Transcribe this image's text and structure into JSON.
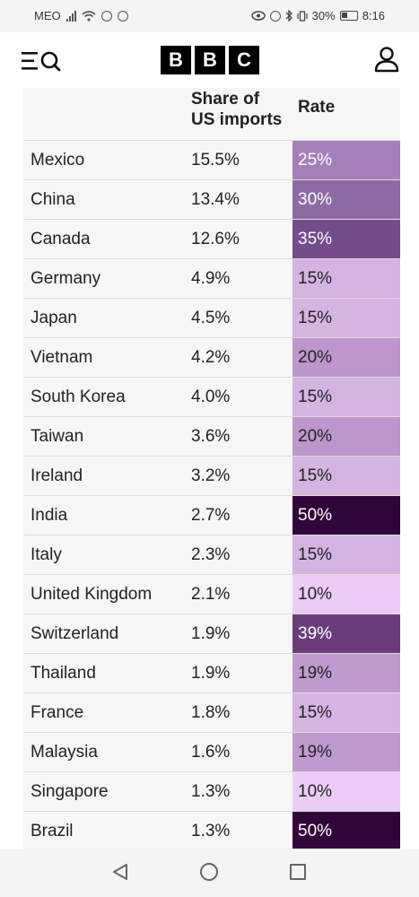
{
  "status_bar": {
    "carrier": "MEO",
    "battery": "30%",
    "time": "8:16"
  },
  "header": {
    "logo_letters": [
      "B",
      "B",
      "C"
    ]
  },
  "table": {
    "headers": {
      "country": "",
      "share_line1": "Share of",
      "share_line2": "US imports",
      "rate": "Rate"
    },
    "rows": [
      {
        "country": "Mexico",
        "share": "15.5%",
        "rate": "25%",
        "color": "#a47fb8",
        "text": "#ffffff"
      },
      {
        "country": "China",
        "share": "13.4%",
        "rate": "30%",
        "color": "#8e6aa5",
        "text": "#ffffff"
      },
      {
        "country": "Canada",
        "share": "12.6%",
        "rate": "35%",
        "color": "#744c8c",
        "text": "#ffffff"
      },
      {
        "country": "Germany",
        "share": "4.9%",
        "rate": "15%",
        "color": "#d5b4e1",
        "text": "#202224"
      },
      {
        "country": "Japan",
        "share": "4.5%",
        "rate": "15%",
        "color": "#d5b4e1",
        "text": "#202224"
      },
      {
        "country": "Vietnam",
        "share": "4.2%",
        "rate": "20%",
        "color": "#bd96cc",
        "text": "#202224"
      },
      {
        "country": "South Korea",
        "share": "4.0%",
        "rate": "15%",
        "color": "#d5b4e1",
        "text": "#202224"
      },
      {
        "country": "Taiwan",
        "share": "3.6%",
        "rate": "20%",
        "color": "#bd96cc",
        "text": "#202224"
      },
      {
        "country": "Ireland",
        "share": "3.2%",
        "rate": "15%",
        "color": "#d5b4e1",
        "text": "#202224"
      },
      {
        "country": "India",
        "share": "2.7%",
        "rate": "50%",
        "color": "#32053a",
        "text": "#ffffff"
      },
      {
        "country": "Italy",
        "share": "2.3%",
        "rate": "15%",
        "color": "#d5b4e1",
        "text": "#202224"
      },
      {
        "country": "United Kingdom",
        "share": "2.1%",
        "rate": "10%",
        "color": "#ecccf6",
        "text": "#202224"
      },
      {
        "country": "Switzerland",
        "share": "1.9%",
        "rate": "39%",
        "color": "#6a3d7a",
        "text": "#ffffff"
      },
      {
        "country": "Thailand",
        "share": "1.9%",
        "rate": "19%",
        "color": "#c09ace",
        "text": "#202224"
      },
      {
        "country": "France",
        "share": "1.8%",
        "rate": "15%",
        "color": "#d5b4e1",
        "text": "#202224"
      },
      {
        "country": "Malaysia",
        "share": "1.6%",
        "rate": "19%",
        "color": "#c09ace",
        "text": "#202224"
      },
      {
        "country": "Singapore",
        "share": "1.3%",
        "rate": "10%",
        "color": "#ecccf6",
        "text": "#202224"
      },
      {
        "country": "Brazil",
        "share": "1.3%",
        "rate": "50%",
        "color": "#32053a",
        "text": "#ffffff"
      }
    ]
  },
  "icons": {
    "menu": "menu-icon",
    "search": "search-icon",
    "account": "account-icon",
    "back": "back-icon",
    "home": "home-icon",
    "recents": "recents-icon"
  }
}
